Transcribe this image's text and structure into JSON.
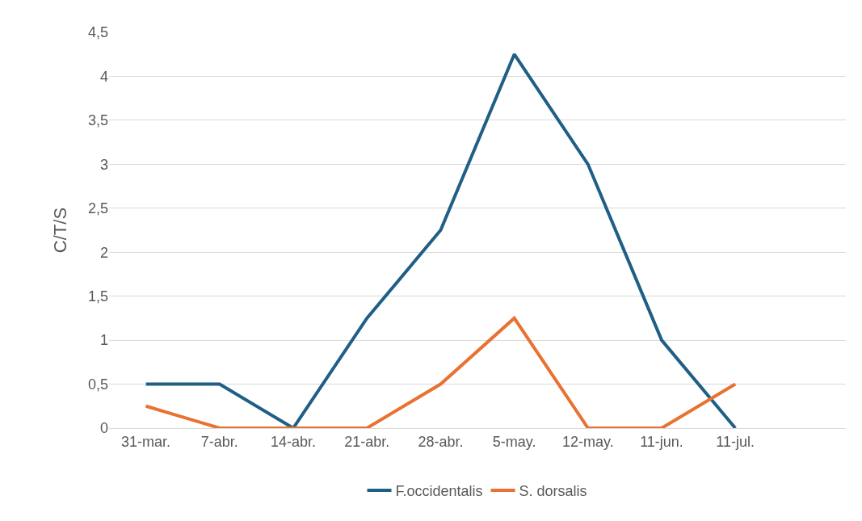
{
  "chart_data": {
    "type": "line",
    "ylabel": "C/T/S",
    "categories": [
      "31-mar.",
      "7-abr.",
      "14-abr.",
      "21-abr.",
      "28-abr.",
      "5-may.",
      "12-may.",
      "11-jun.",
      "11-jul.",
      null
    ],
    "series": [
      {
        "name": "F.occidentalis",
        "color": "#1f5f86",
        "values": [
          0.5,
          0.5,
          0,
          1.25,
          2.25,
          4.25,
          3,
          1,
          0,
          null
        ]
      },
      {
        "name": "S. dorsalis",
        "color": "#e97132",
        "values": [
          0.25,
          0,
          0,
          0,
          0.5,
          1.25,
          0,
          0,
          0.5,
          null
        ]
      }
    ],
    "ylim": [
      0,
      4.5
    ],
    "yticks": [
      0,
      {
        "value": 0.5,
        "label": "0,5"
      },
      1,
      {
        "value": 1.5,
        "label": "1,5"
      },
      2,
      {
        "value": 2.5,
        "label": "2,5"
      },
      3,
      {
        "value": 3.5,
        "label": "3,5"
      },
      4,
      {
        "value": 4.5,
        "label": "4,5"
      }
    ],
    "grid": "y",
    "legend": "bottom",
    "marker": "none",
    "line_style": "solid"
  }
}
